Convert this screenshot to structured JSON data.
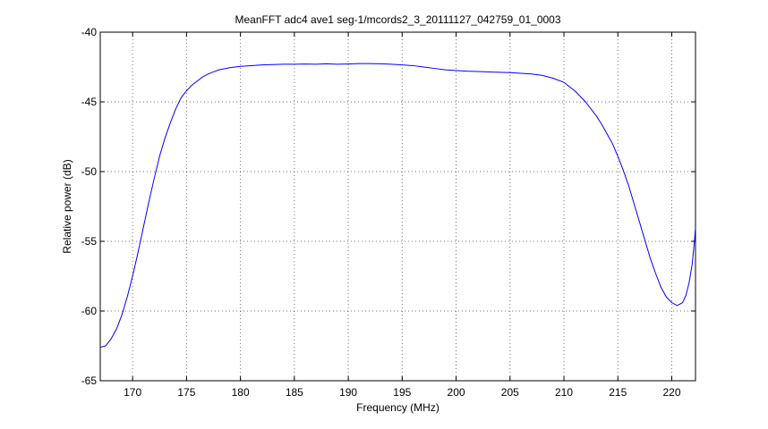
{
  "chart_data": {
    "type": "line",
    "title": "MeanFFT adc4 ave1 seg-1/mcords2_3_20111127_042759_01_0003",
    "xlabel": "Frequency (MHz)",
    "ylabel": "Relative power (dB)",
    "xlim": [
      167,
      222.2
    ],
    "ylim": [
      -65,
      -40
    ],
    "x_ticks": [
      170,
      175,
      180,
      185,
      190,
      195,
      200,
      205,
      210,
      215,
      220
    ],
    "y_ticks": [
      -40,
      -45,
      -50,
      -55,
      -60,
      -65
    ],
    "grid": true,
    "series": [
      {
        "color": "#0000ff",
        "x": [
          167.0,
          167.5,
          168.0,
          168.5,
          169.0,
          169.5,
          170.0,
          170.5,
          171.0,
          171.5,
          172.0,
          172.5,
          173.0,
          173.5,
          174.0,
          174.5,
          175.0,
          175.5,
          176.0,
          176.5,
          177.0,
          177.5,
          178.0,
          179.0,
          180.0,
          181.0,
          182.0,
          183.0,
          184.0,
          185.0,
          186.0,
          187.0,
          188.0,
          189.0,
          190.0,
          191.0,
          192.0,
          193.0,
          194.0,
          195.0,
          196.0,
          197.0,
          198.0,
          199.0,
          200.0,
          201.0,
          202.0,
          203.0,
          204.0,
          205.0,
          206.0,
          207.0,
          208.0,
          209.0,
          210.0,
          210.5,
          211.0,
          211.5,
          212.0,
          212.5,
          213.0,
          213.5,
          214.0,
          214.5,
          215.0,
          215.5,
          216.0,
          216.5,
          217.0,
          217.5,
          218.0,
          218.5,
          219.0,
          219.5,
          220.0,
          220.5,
          221.0,
          221.3,
          221.6,
          221.9,
          222.1,
          222.2
        ],
        "y": [
          -62.6,
          -62.5,
          -62.0,
          -61.3,
          -60.3,
          -59.0,
          -57.5,
          -55.8,
          -54.0,
          -52.2,
          -50.5,
          -48.9,
          -47.6,
          -46.5,
          -45.5,
          -44.7,
          -44.2,
          -43.8,
          -43.5,
          -43.2,
          -43.0,
          -42.85,
          -42.7,
          -42.55,
          -42.45,
          -42.4,
          -42.35,
          -42.32,
          -42.3,
          -42.3,
          -42.28,
          -42.3,
          -42.27,
          -42.3,
          -42.28,
          -42.25,
          -42.25,
          -42.27,
          -42.3,
          -42.35,
          -42.4,
          -42.5,
          -42.6,
          -42.7,
          -42.75,
          -42.8,
          -42.82,
          -42.85,
          -42.88,
          -42.9,
          -42.95,
          -43.0,
          -43.1,
          -43.3,
          -43.6,
          -43.9,
          -44.2,
          -44.6,
          -45.0,
          -45.5,
          -46.0,
          -46.6,
          -47.3,
          -48.0,
          -48.9,
          -49.9,
          -51.0,
          -52.3,
          -53.6,
          -54.9,
          -56.2,
          -57.3,
          -58.3,
          -59.0,
          -59.4,
          -59.6,
          -59.4,
          -58.9,
          -58.0,
          -56.6,
          -55.0,
          -54.0
        ]
      }
    ]
  }
}
